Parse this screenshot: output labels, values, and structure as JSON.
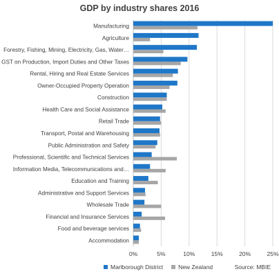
{
  "chart_data": {
    "type": "bar",
    "orientation": "horizontal",
    "title": "GDP by industry shares 2016",
    "categories": [
      "Manufacturing",
      "Agriculture",
      "Forestry, Fishing, Mining, Electricity, Gas, Water…",
      "GST on Production, Import Duties and Other Taxes",
      "Rental, Hiring and Real Estate Services",
      "Owner-Occupied Property Operation",
      "Construction",
      "Health Care and Social Assistance",
      "Retail Trade",
      "Transport, Postal and Warehousing",
      "Public Administration and Safety",
      "Professional, Scientific and Technical Services",
      "Information Media, Telecommunications and…",
      "Education and Training",
      "Administrative and Support Services",
      "Wholesale Trade",
      "Financial and Insurance Services",
      "Food and beverage services",
      "Accommodation"
    ],
    "series": [
      {
        "name": "Marlborough District",
        "color": "#1f77c8",
        "values": [
          25.0,
          11.7,
          11.4,
          9.7,
          8.0,
          7.9,
          6.0,
          5.2,
          4.8,
          4.7,
          4.3,
          3.3,
          3.0,
          2.7,
          2.1,
          2.0,
          1.5,
          1.2,
          1.0
        ]
      },
      {
        "name": "New Zealand",
        "color": "#a6a6a6",
        "values": [
          11.5,
          3.0,
          5.4,
          8.5,
          7.1,
          6.5,
          6.0,
          5.8,
          5.0,
          4.8,
          4.0,
          7.8,
          5.8,
          4.4,
          2.2,
          5.0,
          5.7,
          1.4,
          1.0
        ]
      }
    ],
    "xlim": [
      0,
      25
    ],
    "x_ticks": [
      "0%",
      "5%",
      "10%",
      "15%",
      "20%",
      "25%"
    ],
    "grid": true,
    "legend_position": "bottom"
  },
  "source": "Source: MBIE"
}
